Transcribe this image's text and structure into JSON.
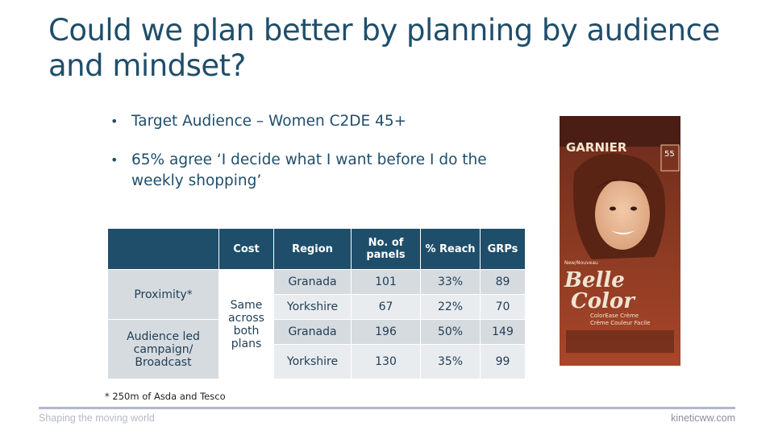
{
  "title": "Could we plan better by planning  by audience and mindset?",
  "bullets": [
    "Target Audience – Women C2DE 45+",
    "65% agree ‘I decide what I want before I do the weekly shopping’"
  ],
  "table": {
    "headers": [
      "",
      "Cost",
      "Region",
      "No. of panels",
      "% Reach",
      "GRPs"
    ],
    "groups": [
      {
        "label": "Proximity*"
      },
      {
        "label": "Audience led campaign/ Broadcast"
      }
    ],
    "cost_label": "Same across both plans",
    "rows": [
      {
        "region": "Granada",
        "panels": "101",
        "reach": "33%",
        "grps": "89"
      },
      {
        "region": "Yorkshire",
        "panels": "67",
        "reach": "22%",
        "grps": "70"
      },
      {
        "region": "Granada",
        "panels": "196",
        "reach": "50%",
        "grps": "149"
      },
      {
        "region": "Yorkshire",
        "panels": "130",
        "reach": "35%",
        "grps": "99"
      }
    ]
  },
  "footnote": "* 250m of Asda and Tesco",
  "footer": {
    "left": "Shaping the moving world",
    "right": "kineticww.com"
  },
  "product": {
    "brand": "GARNIER",
    "shade": "55",
    "line_1": "Belle",
    "line_2": "Color",
    "sub_1": "ColorEase Crème",
    "sub_2": "Crème Couleur Facile",
    "badge": "New/Nouveau"
  }
}
